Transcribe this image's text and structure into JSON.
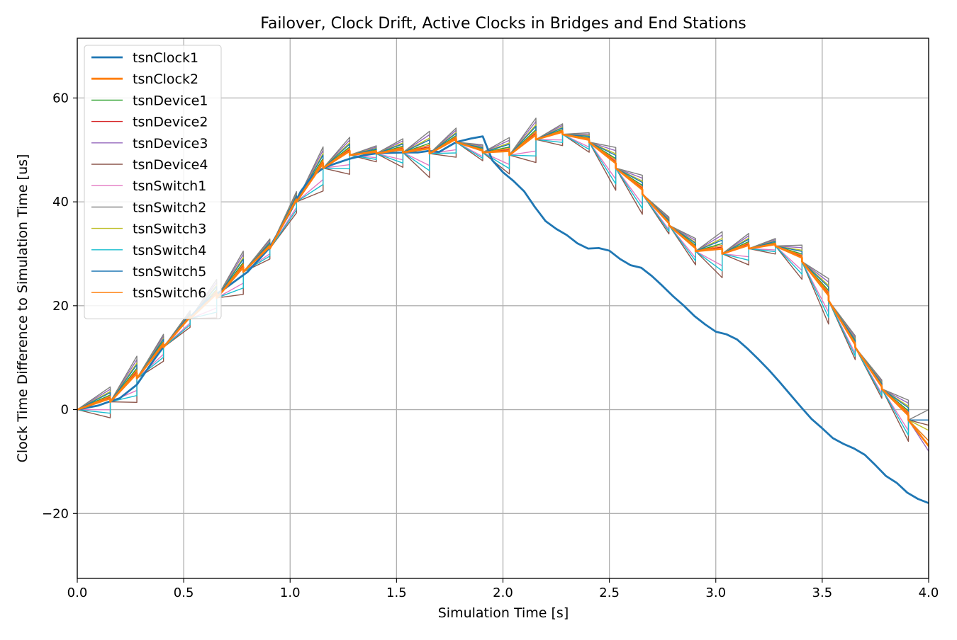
{
  "chart_data": {
    "type": "line",
    "title": "Failover, Clock Drift, Active Clocks in Bridges and End Stations",
    "xlabel": "Simulation Time [s]",
    "ylabel": "Clock Time Difference to Simulation Time [us]",
    "xlim": [
      0.0,
      4.0
    ],
    "ylim": [
      -32.5,
      71.5
    ],
    "xticks": [
      0.0,
      0.5,
      1.0,
      1.5,
      2.0,
      2.5,
      3.0,
      3.5,
      4.0
    ],
    "xtick_labels": [
      "0.0",
      "0.5",
      "1.0",
      "1.5",
      "2.0",
      "2.5",
      "3.0",
      "3.5",
      "4.0"
    ],
    "yticks": [
      -20,
      0,
      20,
      40,
      60
    ],
    "ytick_labels": [
      "−20",
      "0",
      "20",
      "40",
      "60"
    ],
    "grid": true,
    "legend_position": "top-left",
    "master_x": [
      0.0,
      0.05,
      0.1,
      0.155,
      0.2,
      0.28,
      0.35,
      0.4,
      0.5,
      0.6,
      0.7,
      0.8,
      0.9,
      1.0,
      1.05,
      1.1,
      1.155,
      1.2,
      1.28,
      1.35,
      1.4,
      1.45,
      1.53,
      1.6,
      1.65,
      1.7,
      1.78,
      1.85,
      1.905,
      1.95,
      2.0,
      2.05,
      2.1,
      2.15,
      2.2,
      2.25,
      2.3,
      2.35,
      2.4,
      2.45,
      2.5,
      2.55,
      2.6,
      2.65,
      2.7,
      2.75,
      2.8,
      2.85,
      2.9,
      2.95,
      3.0,
      3.05,
      3.1,
      3.15,
      3.2,
      3.25,
      3.3,
      3.35,
      3.4,
      3.45,
      3.5,
      3.55,
      3.6,
      3.65,
      3.7,
      3.75,
      3.8,
      3.85,
      3.9,
      3.95,
      4.0
    ],
    "master_y": [
      0.0,
      0.4,
      0.8,
      1.6,
      2.2,
      4.8,
      9.0,
      11.8,
      16.5,
      20.8,
      23.5,
      26.5,
      31.0,
      38.0,
      42.0,
      44.8,
      46.5,
      47.2,
      48.3,
      49.0,
      49.3,
      49.4,
      49.5,
      49.5,
      49.8,
      49.6,
      51.5,
      52.2,
      52.6,
      48.0,
      45.7,
      44.0,
      42.0,
      39.0,
      36.3,
      34.8,
      33.6,
      32.0,
      31.0,
      31.1,
      30.6,
      29.0,
      27.8,
      27.3,
      25.7,
      23.8,
      21.8,
      20.0,
      18.0,
      16.4,
      15.0,
      14.5,
      13.5,
      11.7,
      9.7,
      7.6,
      5.3,
      2.9,
      0.5,
      -1.8,
      -3.6,
      -5.5,
      -6.6,
      -7.5,
      -8.7,
      -10.7,
      -12.8,
      -14.1,
      -16.0,
      -17.2,
      -18.0
    ],
    "sync_times": [
      0.155,
      0.28,
      0.405,
      0.53,
      0.655,
      0.78,
      0.905,
      1.03,
      1.155,
      1.28,
      1.405,
      1.53,
      1.655,
      1.78,
      1.905,
      2.03,
      2.155,
      2.28,
      2.405,
      2.53,
      2.655,
      2.78,
      2.905,
      3.03,
      3.155,
      3.28,
      3.405,
      3.53,
      3.655,
      3.78,
      3.905,
      4.0
    ],
    "sync_values": [
      1.5,
      6.0,
      12.0,
      17.5,
      21.5,
      26.5,
      31.0,
      40.0,
      46.5,
      49.0,
      49.3,
      49.5,
      49.3,
      51.5,
      49.5,
      49.0,
      52.0,
      53.0,
      51.5,
      46.5,
      41.5,
      35.5,
      30.5,
      30.0,
      31.0,
      31.5,
      28.5,
      21.0,
      12.0,
      4.0,
      -2.0,
      -7.0
    ],
    "series": [
      {
        "name": "tsnClock1",
        "color": "#1f77b4",
        "linewidth": 2.8,
        "kind": "failing-master",
        "failover_time": 1.905,
        "ends": [
          0.0,
          0.0
        ]
      },
      {
        "name": "tsnClock2",
        "color": "#ff7f0e",
        "linewidth": 2.8,
        "kind": "master",
        "ends": [
          0.0,
          -7.0
        ]
      },
      {
        "name": "tsnDevice1",
        "color": "#2ca02c",
        "linewidth": 1.4,
        "kind": "slave",
        "drift_scale": 0.6,
        "ends": [
          0.0,
          -6.0
        ]
      },
      {
        "name": "tsnDevice2",
        "color": "#d62728",
        "linewidth": 1.4,
        "kind": "slave",
        "drift_scale": 0.4,
        "ends": [
          0.0,
          -7.0
        ]
      },
      {
        "name": "tsnDevice3",
        "color": "#9467bd",
        "linewidth": 1.4,
        "kind": "slave",
        "drift_scale": 1.1,
        "ends": [
          0.0,
          -8.0
        ]
      },
      {
        "name": "tsnDevice4",
        "color": "#8c564b",
        "linewidth": 1.4,
        "kind": "slave",
        "drift_scale": -1.4,
        "ends": [
          0.0,
          -3.0
        ]
      },
      {
        "name": "tsnSwitch1",
        "color": "#e377c2",
        "linewidth": 1.4,
        "kind": "slave",
        "drift_scale": -0.7,
        "ends": [
          0.0,
          -6.0
        ]
      },
      {
        "name": "tsnSwitch2",
        "color": "#7f7f7f",
        "linewidth": 1.4,
        "kind": "slave",
        "drift_scale": 1.3,
        "ends": [
          0.0,
          0.0
        ]
      },
      {
        "name": "tsnSwitch3",
        "color": "#bcbd22",
        "linewidth": 1.4,
        "kind": "slave",
        "drift_scale": 0.9,
        "ends": [
          0.0,
          -4.0
        ]
      },
      {
        "name": "tsnSwitch4",
        "color": "#17becf",
        "linewidth": 1.4,
        "kind": "slave",
        "drift_scale": -1.0,
        "ends": [
          0.0,
          -6.0
        ]
      },
      {
        "name": "tsnSwitch5",
        "color": "#1f77b4",
        "linewidth": 1.4,
        "kind": "slave",
        "drift_scale": 0.8,
        "ends": [
          0.0,
          -2.0
        ]
      },
      {
        "name": "tsnSwitch6",
        "color": "#ff7f0e",
        "linewidth": 1.4,
        "kind": "slave",
        "drift_scale": 0.5,
        "ends": [
          0.0,
          -6.0
        ]
      }
    ]
  }
}
